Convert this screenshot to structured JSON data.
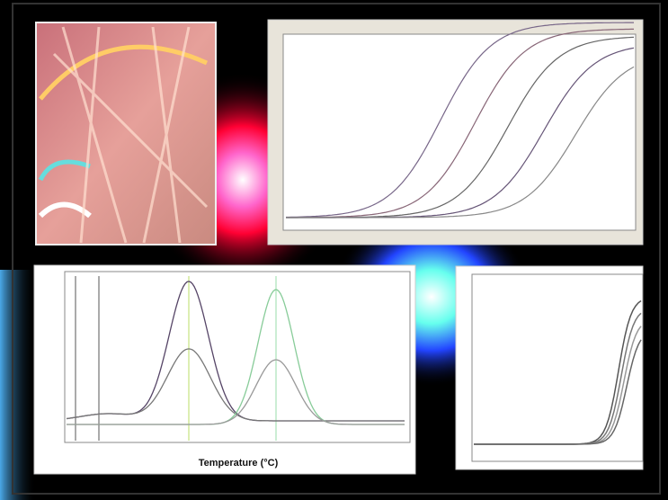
{
  "panels": {
    "melt_curve": {
      "x_label": "Temperature (°C)"
    }
  }
}
